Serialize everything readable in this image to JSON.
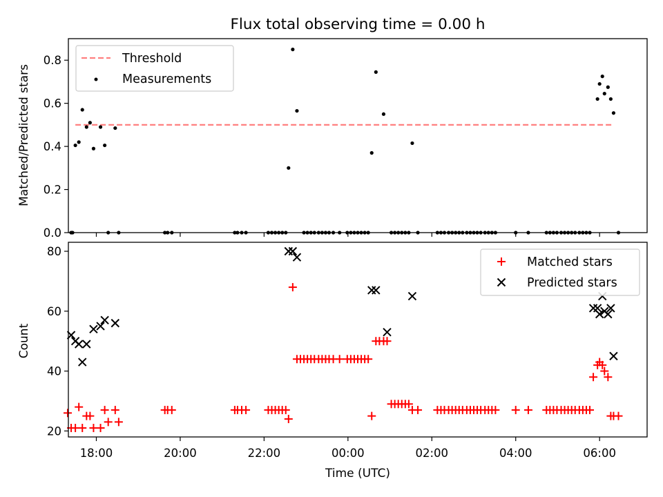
{
  "figure": {
    "title": "Flux total observing time = 0.00 h",
    "xlabel": "Time (UTC)"
  },
  "chart_data": [
    {
      "type": "scatter",
      "ylabel": "Matched/Predicted stars",
      "xlim": [
        "17:20",
        "07:08"
      ],
      "ylim": [
        0,
        0.9
      ],
      "yticks": [
        0.0,
        0.2,
        0.4,
        0.6,
        0.8
      ],
      "ytick_labels": [
        "0.0",
        "0.2",
        "0.4",
        "0.6",
        "0.8"
      ],
      "legend": {
        "placement": "top-left",
        "entries": [
          "Threshold",
          "Measurements"
        ]
      },
      "series": [
        {
          "name": "Threshold",
          "style": "dashed-line",
          "color": "#ff7f7f",
          "x": [
            "17:30",
            "06:20"
          ],
          "y": [
            0.5,
            0.5
          ]
        },
        {
          "name": "Measurements",
          "style": "dot",
          "color": "#000000",
          "x": [
            "17:24",
            "17:30",
            "17:35",
            "17:40",
            "17:46",
            "17:51",
            "17:56",
            "18:06",
            "18:12",
            "18:17",
            "18:27",
            "22:35",
            "22:41",
            "22:47",
            "00:34",
            "00:40",
            "00:51",
            "01:32",
            "05:57",
            "06:00",
            "06:04",
            "06:07",
            "06:12",
            "06:16",
            "06:20"
          ],
          "y": [
            0.0,
            0.405,
            0.42,
            0.57,
            0.49,
            0.51,
            0.39,
            0.49,
            0.405,
            0.0,
            0.485,
            0.3,
            0.85,
            0.565,
            0.37,
            0.745,
            0.55,
            0.415,
            0.62,
            0.69,
            0.725,
            0.645,
            0.675,
            0.62,
            0.555
          ]
        },
        {
          "name": "",
          "style": "dot",
          "color": "#000000",
          "x": [
            "17:26",
            "18:32",
            "19:38",
            "19:42",
            "19:48",
            "21:18",
            "21:22",
            "21:28",
            "21:34",
            "22:06",
            "22:11",
            "22:16",
            "22:21",
            "22:26",
            "22:31",
            "22:57",
            "23:02",
            "23:07",
            "23:12",
            "23:18",
            "23:23",
            "23:28",
            "23:33",
            "23:39",
            "23:48",
            "23:59",
            "00:04",
            "00:09",
            "00:14",
            "00:19",
            "00:24",
            "00:29",
            "01:02",
            "01:07",
            "01:12",
            "01:17",
            "01:22",
            "01:27",
            "01:40",
            "02:08",
            "02:13",
            "02:18",
            "02:24",
            "02:29",
            "02:34",
            "02:39",
            "02:44",
            "02:50",
            "02:55",
            "03:00",
            "03:05",
            "03:10",
            "03:16",
            "03:21",
            "03:26",
            "03:31",
            "04:00",
            "04:18",
            "04:44",
            "04:49",
            "04:54",
            "04:59",
            "05:05",
            "05:10",
            "05:15",
            "05:20",
            "05:25",
            "05:31",
            "05:36",
            "05:41",
            "05:46",
            "06:27"
          ],
          "y": [
            0,
            0,
            0,
            0,
            0,
            0,
            0,
            0,
            0,
            0,
            0,
            0,
            0,
            0,
            0,
            0,
            0,
            0,
            0,
            0,
            0,
            0,
            0,
            0,
            0,
            0,
            0,
            0,
            0,
            0,
            0,
            0,
            0,
            0,
            0,
            0,
            0,
            0,
            0,
            0,
            0,
            0,
            0,
            0,
            0,
            0,
            0,
            0,
            0,
            0,
            0,
            0,
            0,
            0,
            0,
            0,
            0,
            0,
            0,
            0,
            0,
            0,
            0,
            0,
            0,
            0,
            0,
            0,
            0,
            0,
            0,
            0
          ]
        }
      ]
    },
    {
      "type": "scatter",
      "ylabel": "Count",
      "xlim": [
        "17:20",
        "07:08"
      ],
      "ylim": [
        18,
        83
      ],
      "yticks": [
        20,
        40,
        60,
        80
      ],
      "ytick_labels": [
        "20",
        "40",
        "60",
        "80"
      ],
      "xticks": [
        "18:00",
        "20:00",
        "22:00",
        "00:00",
        "02:00",
        "04:00",
        "06:00"
      ],
      "xtick_labels": [
        "18:00",
        "20:00",
        "22:00",
        "00:00",
        "02:00",
        "04:00",
        "06:00"
      ],
      "legend": {
        "placement": "top-right",
        "entries": [
          "Matched stars",
          "Predicted stars"
        ]
      },
      "series": [
        {
          "name": "Matched stars",
          "marker": "plus",
          "color": "#ff0000",
          "x": [
            "17:19",
            "17:24",
            "17:30",
            "17:35",
            "17:40",
            "17:46",
            "17:51",
            "17:56",
            "18:06",
            "18:12",
            "18:17",
            "18:27",
            "18:32",
            "19:38",
            "19:42",
            "19:48",
            "21:18",
            "21:22",
            "21:28",
            "21:34",
            "22:06",
            "22:11",
            "22:16",
            "22:21",
            "22:26",
            "22:31",
            "22:35",
            "22:41",
            "22:47",
            "22:52",
            "22:57",
            "23:02",
            "23:07",
            "23:12",
            "23:18",
            "23:23",
            "23:28",
            "23:33",
            "23:39",
            "23:48",
            "23:59",
            "00:04",
            "00:09",
            "00:14",
            "00:19",
            "00:24",
            "00:29",
            "00:34",
            "00:40",
            "00:45",
            "00:51",
            "00:56",
            "01:02",
            "01:07",
            "01:12",
            "01:17",
            "01:22",
            "01:27",
            "01:32",
            "01:40",
            "02:08",
            "02:13",
            "02:18",
            "02:24",
            "02:29",
            "02:34",
            "02:39",
            "02:44",
            "02:50",
            "02:55",
            "03:00",
            "03:05",
            "03:10",
            "03:16",
            "03:21",
            "03:26",
            "03:31",
            "04:00",
            "04:18",
            "04:44",
            "04:49",
            "04:54",
            "04:59",
            "05:05",
            "05:10",
            "05:15",
            "05:20",
            "05:25",
            "05:31",
            "05:36",
            "05:41",
            "05:46",
            "05:51",
            "05:57",
            "06:00",
            "06:04",
            "06:07",
            "06:12",
            "06:16",
            "06:20",
            "06:27"
          ],
          "y": [
            26,
            21,
            21,
            28,
            21,
            25,
            25,
            21,
            21,
            27,
            23,
            27,
            23,
            27,
            27,
            27,
            27,
            27,
            27,
            27,
            27,
            27,
            27,
            27,
            27,
            27,
            24,
            68,
            44,
            44,
            44,
            44,
            44,
            44,
            44,
            44,
            44,
            44,
            44,
            44,
            44,
            44,
            44,
            44,
            44,
            44,
            44,
            25,
            50,
            50,
            50,
            50,
            29,
            29,
            29,
            29,
            29,
            29,
            27,
            27,
            27,
            27,
            27,
            27,
            27,
            27,
            27,
            27,
            27,
            27,
            27,
            27,
            27,
            27,
            27,
            27,
            27,
            27,
            27,
            27,
            27,
            27,
            27,
            27,
            27,
            27,
            27,
            27,
            27,
            27,
            27,
            27,
            38,
            42,
            43,
            42,
            40,
            38,
            25,
            25,
            25
          ]
        },
        {
          "name": "Predicted stars",
          "marker": "x",
          "color": "#000000",
          "x": [
            "17:24",
            "17:30",
            "17:35",
            "17:40",
            "17:46",
            "17:56",
            "18:06",
            "18:12",
            "18:27",
            "22:35",
            "22:41",
            "22:47",
            "00:34",
            "00:40",
            "00:56",
            "01:32",
            "05:51",
            "05:57",
            "06:00",
            "06:04",
            "06:07",
            "06:12",
            "06:16",
            "06:20"
          ],
          "y": [
            52,
            50,
            49,
            43,
            49,
            54,
            55,
            57,
            56,
            80,
            80,
            78,
            67,
            67,
            53,
            65,
            61,
            61,
            59,
            65,
            60,
            59,
            61,
            45
          ]
        }
      ]
    }
  ]
}
